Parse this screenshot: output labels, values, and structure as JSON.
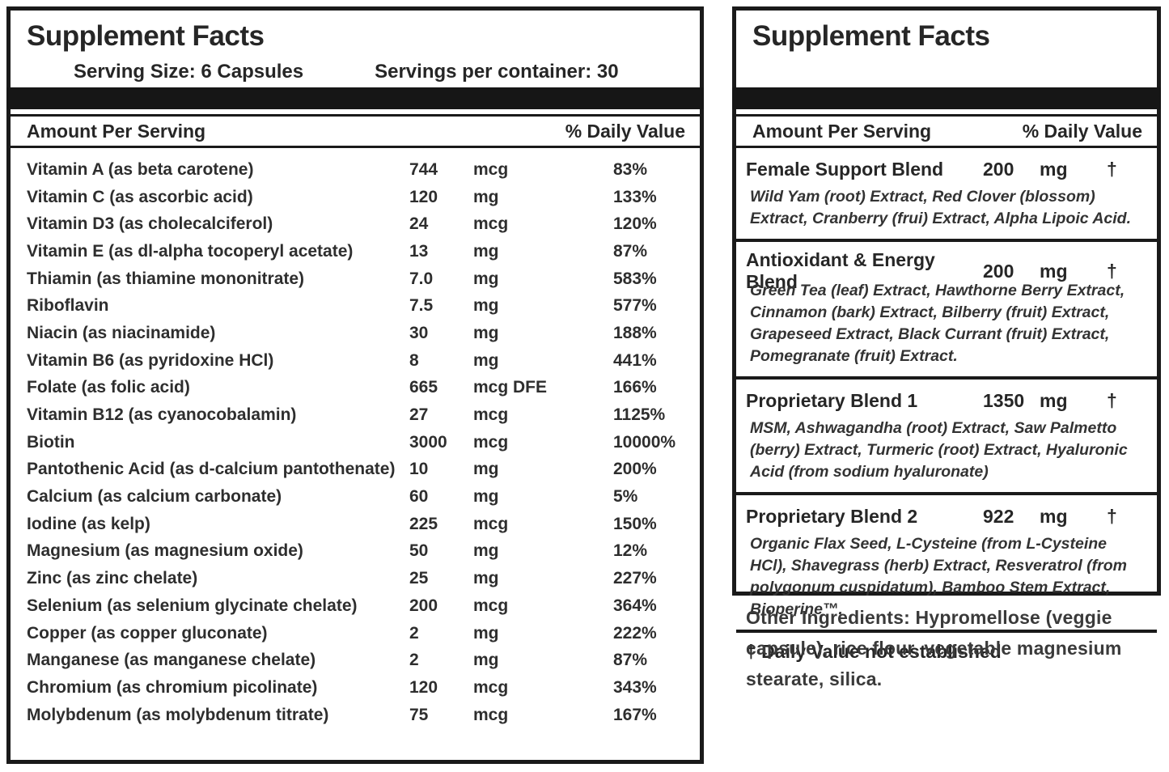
{
  "colors": {
    "text": "#2b2b2b",
    "bar": "#161616",
    "border": "#1a1a1a",
    "background": "#ffffff"
  },
  "left_panel": {
    "title": "Supplement Facts",
    "serving_size": "Serving Size: 6 Capsules",
    "servings_per_container": "Servings per container: 30",
    "col_amount": "Amount Per Serving",
    "col_dv": "% Daily Value",
    "rows": [
      {
        "name": "Vitamin A (as beta carotene)",
        "amount": "744",
        "unit": "mcg",
        "dv": "83%"
      },
      {
        "name": "Vitamin C (as ascorbic acid)",
        "amount": "120",
        "unit": "mg",
        "dv": "133%"
      },
      {
        "name": "Vitamin D3 (as cholecalciferol)",
        "amount": "24",
        "unit": "mcg",
        "dv": "120%"
      },
      {
        "name": "Vitamin E (as dl-alpha tocoperyl acetate)",
        "amount": "13",
        "unit": "mg",
        "dv": "87%"
      },
      {
        "name": "Thiamin (as thiamine mononitrate)",
        "amount": "7.0",
        "unit": "mg",
        "dv": "583%"
      },
      {
        "name": "Riboflavin",
        "amount": "7.5",
        "unit": "mg",
        "dv": "577%"
      },
      {
        "name": "Niacin (as niacinamide)",
        "amount": "30",
        "unit": "mg",
        "dv": "188%"
      },
      {
        "name": "Vitamin B6 (as pyridoxine HCl)",
        "amount": "8",
        "unit": "mg",
        "dv": "441%"
      },
      {
        "name": "Folate (as folic acid)",
        "amount": "665",
        "unit": "mcg DFE",
        "dv": "166%"
      },
      {
        "name": "Vitamin B12 (as cyanocobalamin)",
        "amount": "27",
        "unit": "mcg",
        "dv": "1125%"
      },
      {
        "name": "Biotin",
        "amount": "3000",
        "unit": "mcg",
        "dv": "10000%"
      },
      {
        "name": "Pantothenic Acid (as d-calcium pantothenate)",
        "amount": "10",
        "unit": "mg",
        "dv": "200%"
      },
      {
        "name": "Calcium (as calcium carbonate)",
        "amount": "60",
        "unit": "mg",
        "dv": "5%"
      },
      {
        "name": "Iodine (as kelp)",
        "amount": "225",
        "unit": "mcg",
        "dv": "150%"
      },
      {
        "name": "Magnesium (as magnesium oxide)",
        "amount": "50",
        "unit": "mg",
        "dv": "12%"
      },
      {
        "name": "Zinc (as zinc chelate)",
        "amount": "25",
        "unit": "mg",
        "dv": "227%"
      },
      {
        "name": "Selenium (as selenium glycinate chelate)",
        "amount": "200",
        "unit": "mcg",
        "dv": "364%"
      },
      {
        "name": "Copper (as copper gluconate)",
        "amount": "2",
        "unit": "mg",
        "dv": "222%"
      },
      {
        "name": "Manganese (as manganese chelate)",
        "amount": "2",
        "unit": "mg",
        "dv": "87%"
      },
      {
        "name": "Chromium (as chromium picolinate)",
        "amount": "120",
        "unit": "mcg",
        "dv": "343%"
      },
      {
        "name": "Molybdenum (as molybdenum titrate)",
        "amount": "75",
        "unit": "mcg",
        "dv": "167%"
      }
    ]
  },
  "right_panel": {
    "title": "Supplement Facts",
    "col_amount": "Amount Per Serving",
    "col_dv": "% Daily Value",
    "blends": [
      {
        "name": "Female Support Blend",
        "amount": "200",
        "unit": "mg",
        "dv": "†",
        "ingredients": "Wild Yam (root) Extract, Red Clover (blossom) Extract, Cranberry (frui) Extract, Alpha Lipoic Acid."
      },
      {
        "name": "Antioxidant & Energy Blend",
        "amount": "200",
        "unit": "mg",
        "dv": "†",
        "ingredients": "Green Tea (leaf) Extract, Hawthorne Berry Extract, Cinnamon (bark) Extract, Bilberry (fruit) Extract, Grapeseed Extract, Black Currant (fruit) Extract, Pomegranate (fruit) Extract."
      },
      {
        "name": "Proprietary Blend 1",
        "amount": "1350",
        "unit": "mg",
        "dv": "†",
        "ingredients": "MSM, Ashwagandha (root) Extract, Saw Palmetto (berry) Extract, Turmeric (root) Extract, Hyaluronic Acid (from sodium hyaluronate)"
      },
      {
        "name": "Proprietary Blend 2",
        "amount": "922",
        "unit": "mg",
        "dv": "†",
        "ingredients": "Organic Flax Seed, L-Cysteine (from L-Cysteine HCl), Shavegrass (herb) Extract, Resveratrol (from polygonum cuspidatum), Bamboo Stem Extract, Bioperine™."
      }
    ],
    "footnote": "† Daily Value not established",
    "other_ingredients": "Other Ingredients: Hypromellose (veggie capsule), rice flour, vegetable magnesium stearate, silica."
  }
}
